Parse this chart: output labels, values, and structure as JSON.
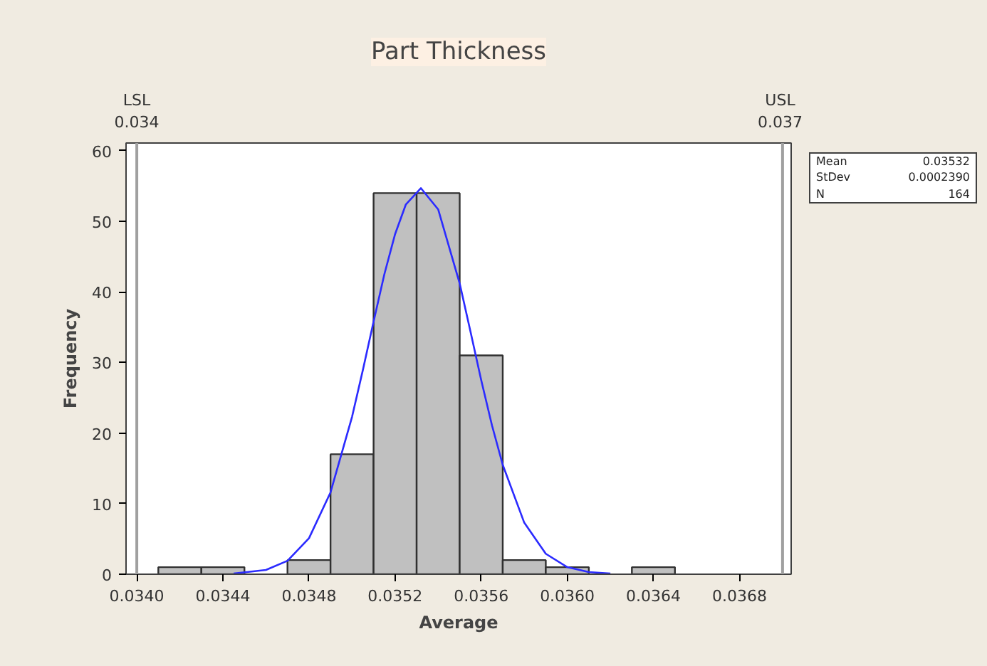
{
  "chart_data": {
    "type": "histogram",
    "title": "Part Thickness",
    "xlabel": "Average",
    "ylabel": "Frequency",
    "series": [
      {
        "color": "#c0c0c0",
        "bins": [
          0.0341,
          0.0343,
          0.0345,
          0.0347,
          0.0349,
          0.0351,
          0.0353,
          0.0355,
          0.0357,
          0.0359,
          0.0361,
          0.0363,
          0.0365
        ],
        "values": [
          1,
          1,
          0,
          2,
          17,
          54,
          54,
          31,
          2,
          1,
          0,
          1
        ]
      },
      {
        "type": "line",
        "color": "#2b2bff",
        "x": [
          0.03445,
          0.0346,
          0.0347,
          0.0348,
          0.0349,
          0.035,
          0.03505,
          0.0351,
          0.03515,
          0.0352,
          0.03525,
          0.03532,
          0.0354,
          0.0355,
          0.03555,
          0.0356,
          0.03565,
          0.0357,
          0.0358,
          0.0359,
          0.036,
          0.0361,
          0.0362
        ],
        "values": [
          0.1,
          0.6,
          1.9,
          5.1,
          11.6,
          22.3,
          28.9,
          35.8,
          42.5,
          48.2,
          52.4,
          54.7,
          51.7,
          41.2,
          34.4,
          27.5,
          21.1,
          15.5,
          7.3,
          2.9,
          1.0,
          0.3,
          0.1
        ]
      }
    ],
    "xlim": [
      0.03395,
      0.03704
    ],
    "ylim": [
      0,
      61.1
    ],
    "xticks": [
      {
        "value": 0.034,
        "label": "0.0340"
      },
      {
        "value": 0.0344,
        "label": "0.0344"
      },
      {
        "value": 0.0348,
        "label": "0.0348"
      },
      {
        "value": 0.0352,
        "label": "0.0352"
      },
      {
        "value": 0.0356,
        "label": "0.0356"
      },
      {
        "value": 0.036,
        "label": "0.0360"
      },
      {
        "value": 0.0364,
        "label": "0.0364"
      },
      {
        "value": 0.0368,
        "label": "0.0368"
      }
    ],
    "yticks": [
      0,
      10,
      20,
      30,
      40,
      50,
      60
    ],
    "ref_lines": [
      {
        "axis": "x",
        "value": 0.034,
        "label": "LSL\n0.034",
        "color": "#a0a0a0"
      },
      {
        "axis": "x",
        "value": 0.037,
        "label": "USL\n0.037",
        "color": "#a0a0a0"
      }
    ],
    "annotations": [
      "Mean",
      "0.03532",
      "StDev",
      "0.0002390",
      "N",
      "164"
    ],
    "grid": false
  }
}
